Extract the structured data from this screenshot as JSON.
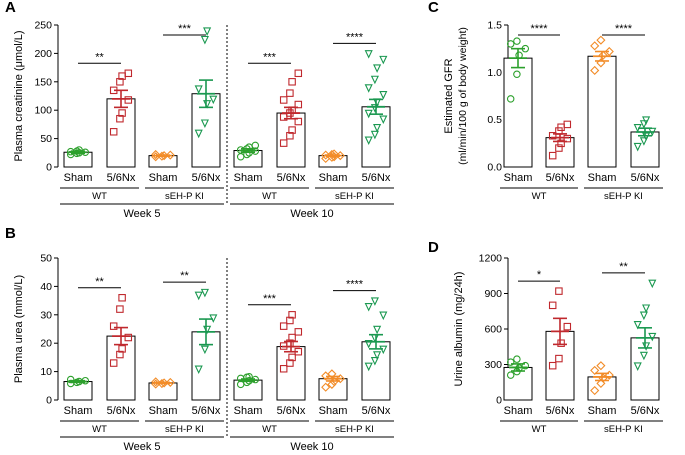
{
  "colors": {
    "wt_sham": "#2ca02c",
    "wt_nx": "#c0282d",
    "ki_sham": "#f28c28",
    "ki_nx": "#1a9850",
    "axis": "#000000"
  },
  "chart_data": [
    {
      "panel_label": "A",
      "type": "bar",
      "ylabel": "Plasma creatinine (μmol/L)",
      "ylim": [
        0,
        250
      ],
      "yticks": [
        0,
        50,
        100,
        150,
        200,
        250
      ],
      "categories": [
        "Sham",
        "5/6Nx",
        "Sham",
        "5/6Nx",
        "Sham",
        "5/6Nx",
        "Sham",
        "5/6Nx"
      ],
      "genotype_labels": [
        "WT",
        "sEH-P KI",
        "WT",
        "sEH-P KI"
      ],
      "week_labels": [
        "Week 5",
        "Week 10"
      ],
      "divider": true,
      "significance": [
        {
          "pair": [
            0,
            1
          ],
          "label": "**"
        },
        {
          "pair": [
            2,
            3
          ],
          "label": "***"
        },
        {
          "pair": [
            4,
            5
          ],
          "label": "***"
        },
        {
          "pair": [
            6,
            7
          ],
          "label": "****"
        }
      ],
      "series": [
        {
          "name": "WT Sham wk5",
          "group": "wt_sham",
          "mean": 26,
          "sem": 2,
          "points": [
            22,
            24,
            25,
            26,
            27,
            28,
            30
          ]
        },
        {
          "name": "WT 5/6Nx wk5",
          "group": "wt_nx",
          "mean": 120,
          "sem": 15,
          "points": [
            62,
            85,
            95,
            118,
            135,
            150,
            160,
            165
          ]
        },
        {
          "name": "sEH-P KI Sham wk5",
          "group": "ki_sham",
          "mean": 20,
          "sem": 1,
          "points": [
            18,
            19,
            20,
            21,
            22
          ]
        },
        {
          "name": "sEH-P KI 5/6Nx wk5",
          "group": "ki_nx",
          "mean": 129,
          "sem": 24,
          "points": [
            60,
            78,
            112,
            120,
            138,
            225,
            240
          ]
        },
        {
          "name": "WT Sham wk10",
          "group": "wt_sham",
          "mean": 29,
          "sem": 3,
          "points": [
            18,
            22,
            25,
            28,
            30,
            32,
            35,
            38
          ]
        },
        {
          "name": "WT 5/6Nx wk10",
          "group": "wt_nx",
          "mean": 95,
          "sem": 10,
          "points": [
            42,
            55,
            65,
            80,
            88,
            95,
            100,
            110,
            118,
            130,
            150,
            165
          ]
        },
        {
          "name": "sEH-P KI Sham wk10",
          "group": "ki_sham",
          "mean": 20,
          "sem": 1,
          "points": [
            15,
            17,
            18,
            20,
            21,
            22,
            23
          ]
        },
        {
          "name": "sEH-P KI 5/6Nx wk10",
          "group": "ki_nx",
          "mean": 106,
          "sem": 13,
          "points": [
            48,
            58,
            70,
            85,
            95,
            105,
            115,
            128,
            140,
            155,
            175,
            190,
            200
          ]
        }
      ]
    },
    {
      "panel_label": "B",
      "type": "bar",
      "ylabel": "Plasma urea (mmol/L)",
      "ylim": [
        0,
        50
      ],
      "yticks": [
        0,
        10,
        20,
        30,
        40,
        50
      ],
      "categories": [
        "Sham",
        "5/6Nx",
        "Sham",
        "5/6Nx",
        "Sham",
        "5/6Nx",
        "Sham",
        "5/6Nx"
      ],
      "genotype_labels": [
        "WT",
        "sEH-P KI",
        "WT",
        "sEH-P KI"
      ],
      "week_labels": [
        "Week 5",
        "Week 10"
      ],
      "divider": true,
      "significance": [
        {
          "pair": [
            0,
            1
          ],
          "label": "**"
        },
        {
          "pair": [
            2,
            3
          ],
          "label": "**"
        },
        {
          "pair": [
            4,
            5
          ],
          "label": "***"
        },
        {
          "pair": [
            6,
            7
          ],
          "label": "****"
        }
      ],
      "series": [
        {
          "name": "WT Sham wk5",
          "group": "wt_sham",
          "mean": 6.5,
          "sem": 0.3,
          "points": [
            5.8,
            6.2,
            6.5,
            6.8,
            7.2
          ]
        },
        {
          "name": "WT 5/6Nx wk5",
          "group": "wt_nx",
          "mean": 22.5,
          "sem": 3,
          "points": [
            13,
            16,
            18,
            22,
            26,
            32,
            36
          ]
        },
        {
          "name": "sEH-P KI Sham wk5",
          "group": "ki_sham",
          "mean": 6.0,
          "sem": 0.2,
          "points": [
            5.6,
            5.8,
            6.0,
            6.2,
            6.4
          ]
        },
        {
          "name": "sEH-P KI 5/6Nx wk5",
          "group": "ki_nx",
          "mean": 24,
          "sem": 4.5,
          "points": [
            11,
            18,
            25,
            29,
            37,
            38
          ]
        },
        {
          "name": "WT Sham wk10",
          "group": "wt_sham",
          "mean": 7.0,
          "sem": 0.4,
          "points": [
            5.5,
            6.2,
            6.8,
            7.2,
            7.6,
            8.0,
            8.2
          ]
        },
        {
          "name": "WT 5/6Nx wk10",
          "group": "wt_nx",
          "mean": 18.8,
          "sem": 1.8,
          "points": [
            11,
            13,
            15,
            17,
            19,
            20,
            22,
            24,
            26,
            28,
            30
          ]
        },
        {
          "name": "sEH-P KI Sham wk10",
          "group": "ki_sham",
          "mean": 7.5,
          "sem": 0.8,
          "points": [
            4.5,
            5.5,
            6.5,
            7.5,
            8.5,
            9.2
          ]
        },
        {
          "name": "sEH-P KI 5/6Nx wk10",
          "group": "ki_nx",
          "mean": 20.5,
          "sem": 2.5,
          "points": [
            12,
            14,
            16,
            18,
            20,
            22,
            25,
            30,
            33,
            35
          ]
        }
      ]
    },
    {
      "panel_label": "C",
      "type": "bar",
      "ylabel": "Estimated GFR",
      "ylabel2": "(ml/min/100 g of body weight)",
      "ylim": [
        0,
        1.5
      ],
      "yticks": [
        0.0,
        0.5,
        1.0,
        1.5
      ],
      "categories": [
        "Sham",
        "5/6Nx",
        "Sham",
        "5/6Nx"
      ],
      "genotype_labels": [
        "WT",
        "sEH-P KI"
      ],
      "week_labels": [],
      "divider": false,
      "significance": [
        {
          "pair": [
            0,
            1
          ],
          "label": "****"
        },
        {
          "pair": [
            2,
            3
          ],
          "label": "****"
        }
      ],
      "series": [
        {
          "name": "WT Sham",
          "group": "wt_sham",
          "mean": 1.15,
          "sem": 0.1,
          "points": [
            0.72,
            0.98,
            1.18,
            1.25,
            1.3,
            1.33
          ]
        },
        {
          "name": "WT 5/6Nx",
          "group": "wt_nx",
          "mean": 0.31,
          "sem": 0.04,
          "points": [
            0.12,
            0.2,
            0.25,
            0.3,
            0.33,
            0.38,
            0.42,
            0.45
          ]
        },
        {
          "name": "sEH-P KI Sham",
          "group": "ki_sham",
          "mean": 1.17,
          "sem": 0.05,
          "points": [
            1.02,
            1.1,
            1.18,
            1.22,
            1.28,
            1.34
          ]
        },
        {
          "name": "sEH-P KI 5/6Nx",
          "group": "ki_nx",
          "mean": 0.37,
          "sem": 0.04,
          "points": [
            0.22,
            0.28,
            0.33,
            0.38,
            0.42,
            0.46,
            0.5
          ]
        }
      ]
    },
    {
      "panel_label": "D",
      "type": "bar",
      "ylabel": "Urine albumin (mg/24h)",
      "ylim": [
        0,
        1200
      ],
      "yticks": [
        0,
        300,
        600,
        900,
        1200
      ],
      "categories": [
        "Sham",
        "5/6Nx",
        "Sham",
        "5/6Nx"
      ],
      "genotype_labels": [
        "WT",
        "sEH-P KI"
      ],
      "week_labels": [],
      "divider": false,
      "significance": [
        {
          "pair": [
            0,
            1
          ],
          "label": "*"
        },
        {
          "pair": [
            2,
            3
          ],
          "label": "**"
        }
      ],
      "series": [
        {
          "name": "WT Sham",
          "group": "wt_sham",
          "mean": 275,
          "sem": 30,
          "points": [
            210,
            240,
            270,
            290,
            320,
            345
          ]
        },
        {
          "name": "WT 5/6Nx",
          "group": "wt_nx",
          "mean": 580,
          "sem": 110,
          "points": [
            290,
            350,
            480,
            620,
            800,
            920
          ]
        },
        {
          "name": "sEH-P KI Sham",
          "group": "ki_sham",
          "mean": 195,
          "sem": 30,
          "points": [
            80,
            140,
            185,
            210,
            250,
            290
          ]
        },
        {
          "name": "sEH-P KI 5/6Nx",
          "group": "ki_nx",
          "mean": 525,
          "sem": 85,
          "points": [
            290,
            380,
            460,
            540,
            640,
            720,
            780,
            990
          ]
        }
      ]
    }
  ]
}
